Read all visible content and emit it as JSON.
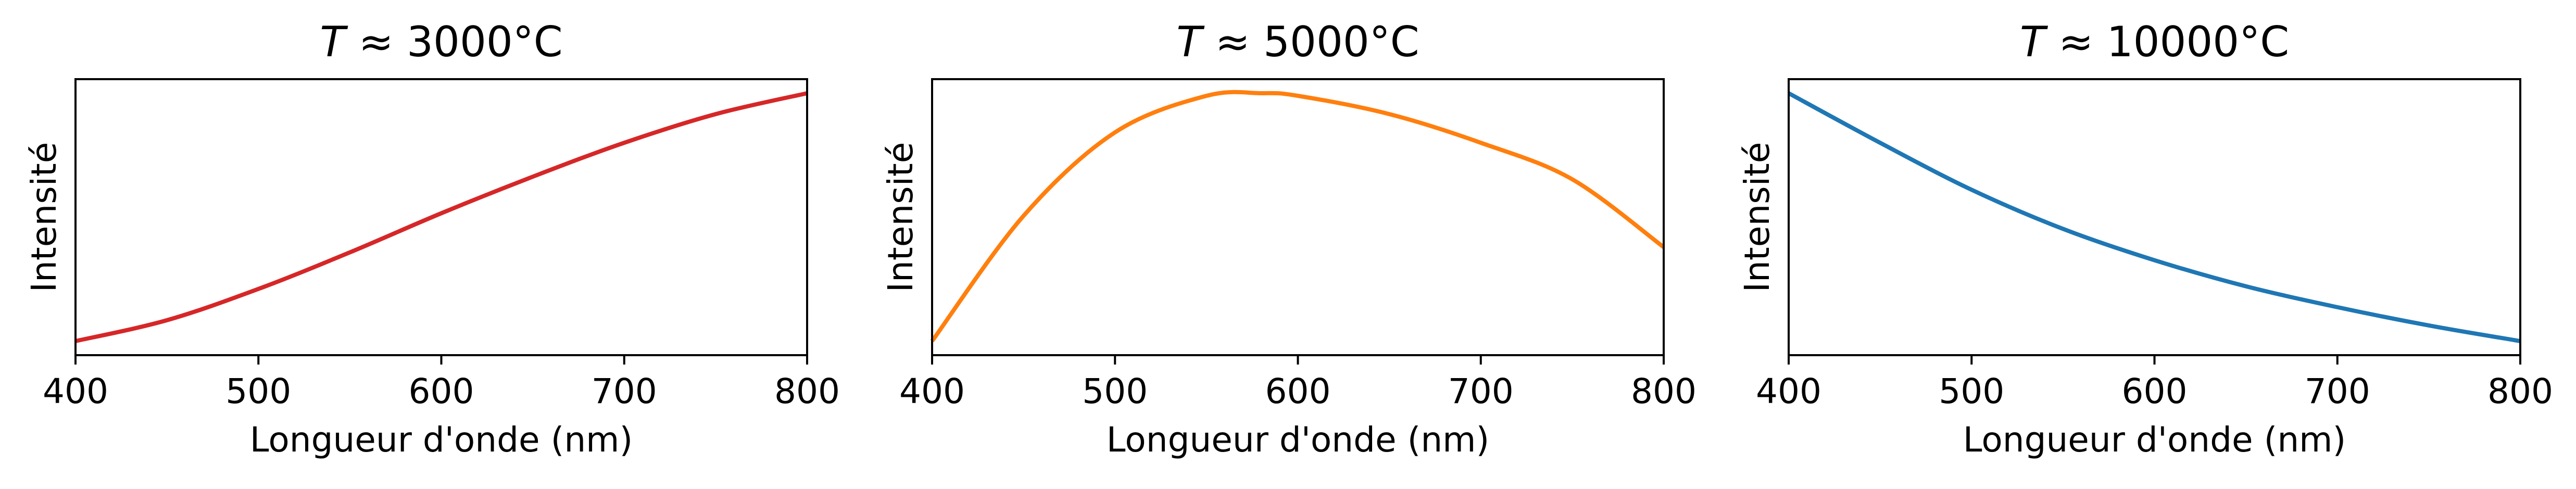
{
  "chart_data": [
    {
      "type": "line",
      "title": {
        "symbol": "T",
        "rest": " ≈ 3000°C"
      },
      "xlabel": "Longueur d'onde (nm)",
      "ylabel": "Intensité",
      "xlim": [
        400,
        800
      ],
      "xticks": [
        "400",
        "500",
        "600",
        "700",
        "800"
      ],
      "yticks": false,
      "grid": false,
      "series": [
        {
          "color": "#d62728",
          "x": [
            400,
            450,
            500,
            550,
            600,
            650,
            700,
            750,
            800
          ],
          "y": [
            0.0,
            0.08,
            0.2,
            0.34,
            0.49,
            0.63,
            0.76,
            0.87,
            0.95
          ]
        }
      ]
    },
    {
      "type": "line",
      "title": {
        "symbol": "T",
        "rest": " ≈ 5000°C"
      },
      "xlabel": "Longueur d'onde (nm)",
      "ylabel": "Intensité",
      "xlim": [
        400,
        800
      ],
      "xticks": [
        "400",
        "500",
        "600",
        "700",
        "800"
      ],
      "yticks": false,
      "grid": false,
      "series": [
        {
          "color": "#ff7f0e",
          "x": [
            400,
            450,
            500,
            550,
            580,
            600,
            650,
            700,
            750,
            800
          ],
          "y": [
            0.0,
            0.48,
            0.8,
            0.94,
            0.95,
            0.94,
            0.87,
            0.76,
            0.62,
            0.36
          ]
        }
      ]
    },
    {
      "type": "line",
      "title": {
        "symbol": "T",
        "rest": " ≈ 10000°C"
      },
      "xlabel": "Longueur d'onde (nm)",
      "ylabel": "Intensité",
      "xlim": [
        400,
        800
      ],
      "xticks": [
        "400",
        "500",
        "600",
        "700",
        "800"
      ],
      "yticks": false,
      "grid": false,
      "series": [
        {
          "color": "#1f77b4",
          "x": [
            400,
            450,
            500,
            550,
            600,
            650,
            700,
            750,
            800
          ],
          "y": [
            0.95,
            0.76,
            0.58,
            0.43,
            0.31,
            0.21,
            0.13,
            0.06,
            0.0
          ]
        }
      ]
    }
  ]
}
